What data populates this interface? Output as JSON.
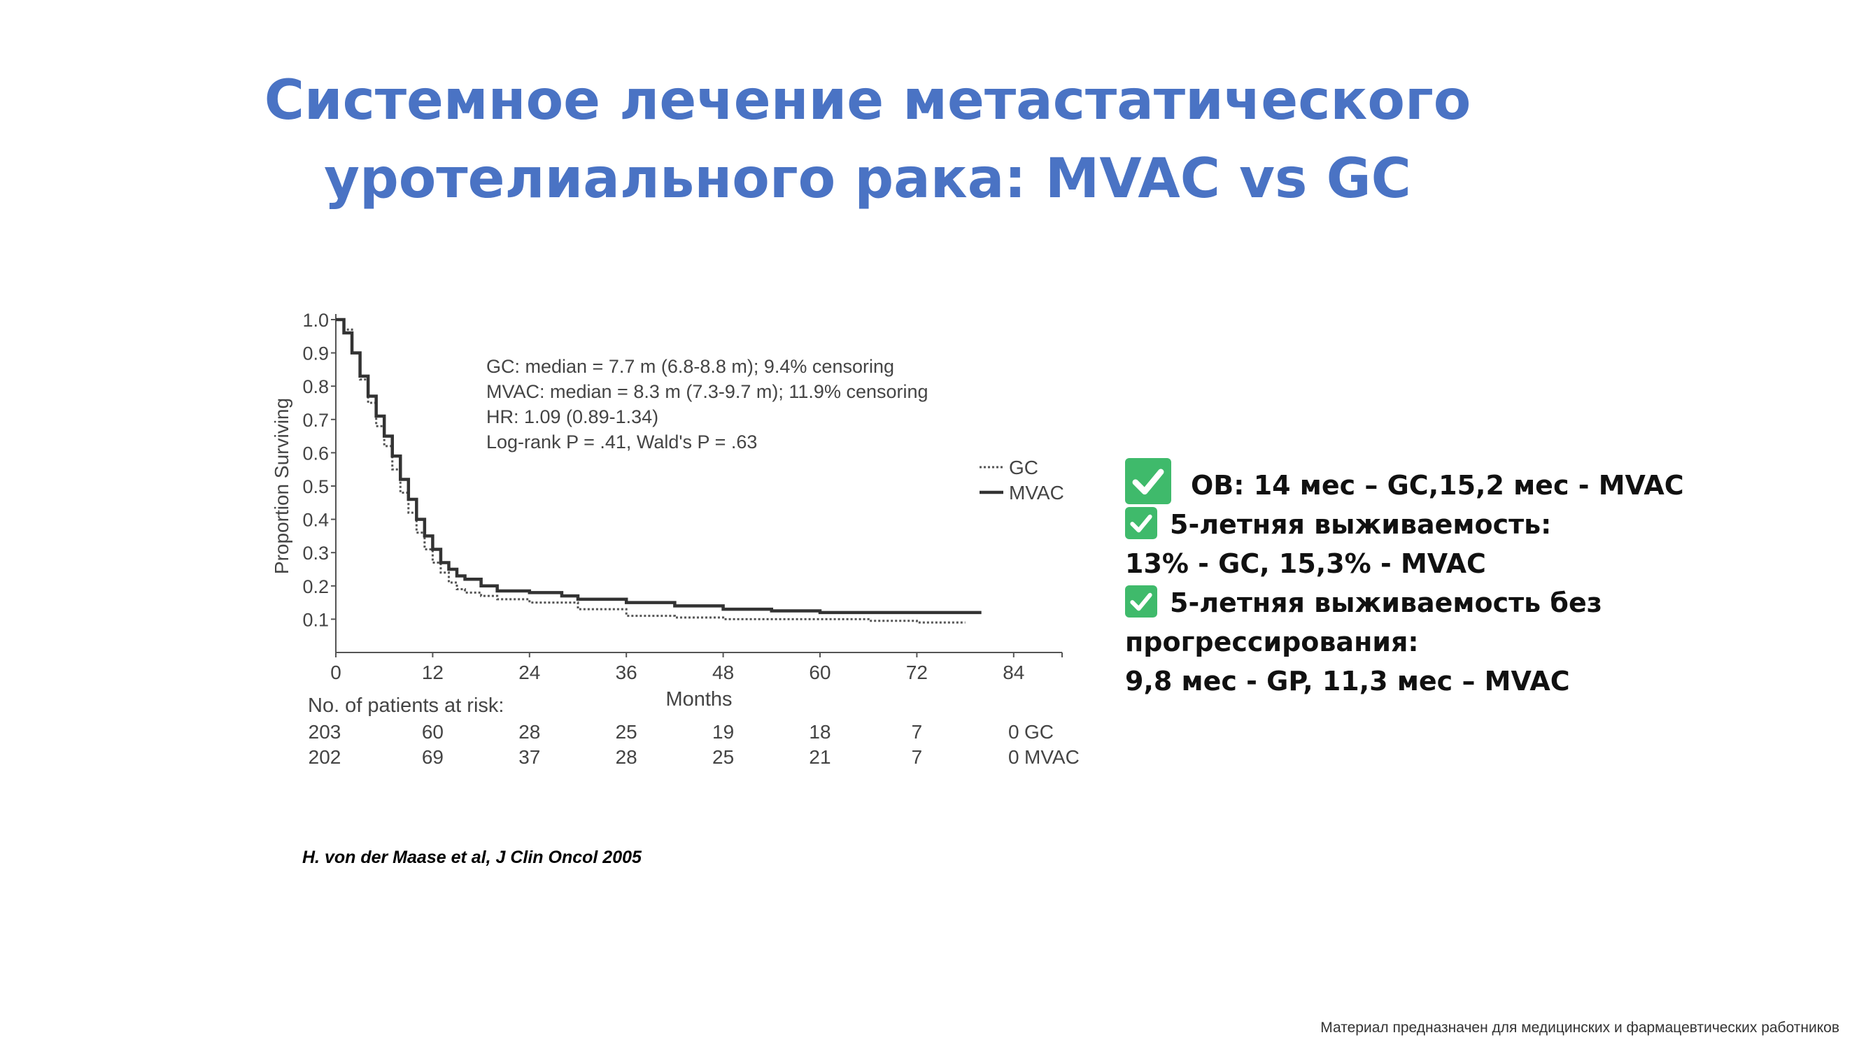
{
  "slide": {
    "title_line1": "Системное лечение метастатического",
    "title_line2": "уротелиального рака: MVAC vs GC",
    "citation": "H. von der Maase et al, J Clin Oncol 2005",
    "footer": "Материал предназначен для медицинских и фармацевтических работников"
  },
  "bullets": {
    "os": "OB: 14 мес – GC,15,2 мес - MVAC",
    "survival5_heading": "5-летняя выживаемость:",
    "survival5_values": "13% - GC, 15,3% - MVAC",
    "pfs5_heading": "5-летняя выживаемость без",
    "pfs5_heading_cont": "прогрессирования:",
    "pfs5_values": "9,8 мес - GP, 11,3 мес – MVAC",
    "check_icon_color": "#3fba6b"
  },
  "chart_data": {
    "type": "line",
    "xlabel": "Months",
    "ylabel": "Proportion Surviving",
    "xlim": [
      0,
      90
    ],
    "ylim": [
      0,
      1.0
    ],
    "xticks": [
      "0",
      "12",
      "24",
      "36",
      "48",
      "60",
      "72",
      "84"
    ],
    "yticks": [
      "0.1",
      "0.2",
      "0.3",
      "0.4",
      "0.5",
      "0.6",
      "0.7",
      "0.8",
      "0.9",
      "1.0"
    ],
    "annotations": [
      "GC: median = 7.7 m (6.8-8.8 m); 9.4% censoring",
      "MVAC: median = 8.3 m (7.3-9.7 m); 11.9% censoring",
      "HR: 1.09 (0.89-1.34)",
      "Log-rank P = .41, Wald's P = .63"
    ],
    "legend_placement": "right",
    "series": [
      {
        "name": "GC",
        "style": "dotted",
        "color": "#555555",
        "x": [
          0,
          1,
          2,
          3,
          4,
          5,
          6,
          7,
          8,
          9,
          10,
          11,
          12,
          13,
          14,
          15,
          16,
          18,
          20,
          24,
          30,
          36,
          42,
          48,
          54,
          60,
          66,
          72,
          78
        ],
        "y": [
          1.0,
          0.97,
          0.9,
          0.82,
          0.75,
          0.68,
          0.62,
          0.55,
          0.48,
          0.42,
          0.36,
          0.31,
          0.27,
          0.24,
          0.21,
          0.19,
          0.18,
          0.17,
          0.16,
          0.15,
          0.13,
          0.11,
          0.105,
          0.1,
          0.1,
          0.1,
          0.095,
          0.09,
          0.09
        ]
      },
      {
        "name": "MVAC",
        "style": "solid",
        "color": "#333333",
        "x": [
          0,
          1,
          2,
          3,
          4,
          5,
          6,
          7,
          8,
          9,
          10,
          11,
          12,
          13,
          14,
          15,
          16,
          18,
          20,
          24,
          28,
          30,
          36,
          42,
          48,
          54,
          60,
          66,
          72,
          80
        ],
        "y": [
          1.0,
          0.96,
          0.9,
          0.83,
          0.77,
          0.71,
          0.65,
          0.59,
          0.52,
          0.46,
          0.4,
          0.35,
          0.31,
          0.27,
          0.25,
          0.23,
          0.22,
          0.2,
          0.185,
          0.18,
          0.17,
          0.16,
          0.15,
          0.14,
          0.13,
          0.125,
          0.12,
          0.12,
          0.12,
          0.12
        ]
      }
    ],
    "risk_table": {
      "heading": "No. of patients at risk:",
      "rows": [
        {
          "label": "GC",
          "values": [
            "203",
            "60",
            "28",
            "25",
            "19",
            "18",
            "7",
            "0"
          ]
        },
        {
          "label": "MVAC",
          "values": [
            "202",
            "69",
            "37",
            "28",
            "25",
            "21",
            "7",
            "0"
          ]
        }
      ]
    }
  }
}
